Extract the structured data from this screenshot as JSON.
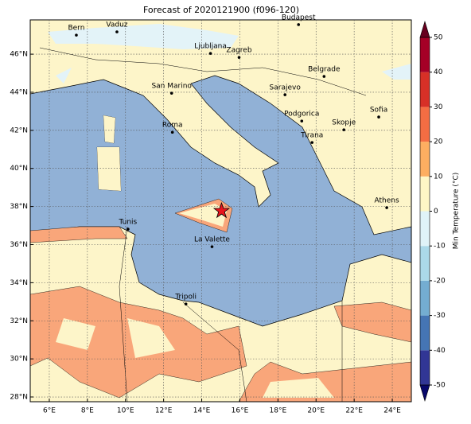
{
  "title": "Forecast of 2020121900 (f096-120)",
  "map": {
    "lonlim": [
      5,
      25
    ],
    "latlim": [
      27.75,
      47.8
    ],
    "lon_ticks": [
      {
        "value": 6,
        "label": "6°E"
      },
      {
        "value": 8,
        "label": "8°E"
      },
      {
        "value": 10,
        "label": "10°E"
      },
      {
        "value": 12,
        "label": "12°E"
      },
      {
        "value": 14,
        "label": "14°E"
      },
      {
        "value": 16,
        "label": "16°E"
      },
      {
        "value": 18,
        "label": "18°E"
      },
      {
        "value": 20,
        "label": "20°E"
      },
      {
        "value": 22,
        "label": "22°E"
      },
      {
        "value": 24,
        "label": "24°E"
      }
    ],
    "lat_ticks": [
      {
        "value": 28,
        "label": "28°N"
      },
      {
        "value": 30,
        "label": "30°N"
      },
      {
        "value": 32,
        "label": "32°N"
      },
      {
        "value": 34,
        "label": "34°N"
      },
      {
        "value": 36,
        "label": "36°N"
      },
      {
        "value": 38,
        "label": "38°N"
      },
      {
        "value": 40,
        "label": "40°N"
      },
      {
        "value": 42,
        "label": "42°N"
      },
      {
        "value": 44,
        "label": "44°N"
      },
      {
        "value": 46,
        "label": "46°N"
      }
    ],
    "cities": [
      {
        "name": "Bern",
        "lon": 7.42,
        "lat": 47.0
      },
      {
        "name": "Vaduz",
        "lon": 9.55,
        "lat": 47.17
      },
      {
        "name": "Budapest",
        "lon": 19.08,
        "lat": 47.55
      },
      {
        "name": "Ljubljana",
        "lon": 14.46,
        "lat": 46.04
      },
      {
        "name": "Zagreb",
        "lon": 15.96,
        "lat": 45.83
      },
      {
        "name": "Belgrade",
        "lon": 20.42,
        "lat": 44.83
      },
      {
        "name": "San Marino",
        "lon": 12.42,
        "lat": 43.95
      },
      {
        "name": "Sarajevo",
        "lon": 18.37,
        "lat": 43.87
      },
      {
        "name": "Sofia",
        "lon": 23.29,
        "lat": 42.7
      },
      {
        "name": "Podgorica",
        "lon": 19.25,
        "lat": 42.49
      },
      {
        "name": "Skopje",
        "lon": 21.46,
        "lat": 42.03
      },
      {
        "name": "Roma",
        "lon": 12.46,
        "lat": 41.9
      },
      {
        "name": "Tirana",
        "lon": 19.79,
        "lat": 41.36
      },
      {
        "name": "Athens",
        "lon": 23.71,
        "lat": 37.94
      },
      {
        "name": "Tunis",
        "lon": 10.13,
        "lat": 36.81
      },
      {
        "name": "La Valette",
        "lon": 14.54,
        "lat": 35.89
      },
      {
        "name": "Tripoli",
        "lon": 13.17,
        "lat": 32.88
      }
    ],
    "marker": {
      "lon": 15.04,
      "lat": 37.77,
      "color": "#e8141c"
    }
  },
  "colorbar": {
    "label": "Min Temperature (°C)",
    "lim": [
      -50,
      50
    ],
    "ticks": [
      -50,
      -40,
      -30,
      -20,
      -10,
      0,
      10,
      20,
      30,
      40,
      50
    ],
    "colors": [
      "#313695",
      "#4575b4",
      "#74add1",
      "#abd9e9",
      "#e0f3f8",
      "#fef7c6",
      "#fdae61",
      "#f46d43",
      "#d73027",
      "#a50026"
    ],
    "under": "#08086b",
    "over": "#67001f"
  }
}
